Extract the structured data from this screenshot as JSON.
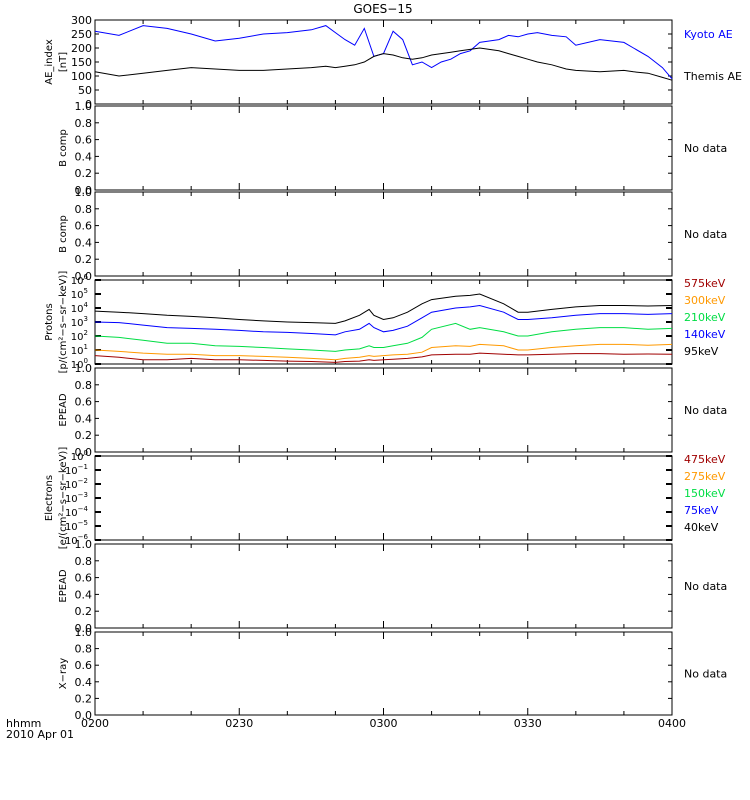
{
  "title": "GOES−15",
  "x_axis": {
    "label": "hhmm",
    "date": "2010 Apr 01",
    "ticks": [
      "0200",
      "0230",
      "0300",
      "0330",
      "0400"
    ]
  },
  "no_data_text": "No data",
  "chart_data": [
    {
      "id": "ae",
      "type": "line",
      "ylabel": "AE_index",
      "yunit": "[nT]",
      "ylim": [
        0,
        300
      ],
      "yticks": [
        "0",
        "50",
        "100",
        "150",
        "200",
        "250",
        "300"
      ],
      "x_minutes": [
        0,
        5,
        10,
        15,
        20,
        25,
        30,
        35,
        40,
        45,
        48,
        50,
        52,
        54,
        56,
        58,
        60,
        62,
        64,
        66,
        68,
        70,
        72,
        74,
        76,
        78,
        80,
        82,
        84,
        86,
        88,
        90,
        92,
        95,
        98,
        100,
        105,
        110,
        112,
        115,
        118,
        120
      ],
      "series": [
        {
          "name": "Kyoto AE",
          "color": "#0000ff",
          "values": [
            260,
            245,
            280,
            270,
            250,
            225,
            235,
            250,
            255,
            265,
            280,
            255,
            230,
            210,
            270,
            170,
            180,
            260,
            230,
            140,
            150,
            130,
            150,
            160,
            180,
            190,
            220,
            225,
            230,
            245,
            240,
            250,
            255,
            245,
            240,
            210,
            230,
            220,
            200,
            170,
            130,
            90
          ]
        },
        {
          "name": "Themis AE",
          "color": "#000000",
          "values": [
            115,
            100,
            110,
            120,
            130,
            125,
            120,
            120,
            125,
            130,
            135,
            130,
            135,
            140,
            150,
            170,
            180,
            175,
            165,
            160,
            165,
            175,
            180,
            185,
            190,
            195,
            200,
            195,
            190,
            180,
            170,
            160,
            150,
            140,
            125,
            120,
            115,
            120,
            115,
            110,
            95,
            85
          ]
        }
      ]
    },
    {
      "id": "b1",
      "type": "line",
      "ylabel": "B comp",
      "ylim": [
        0,
        1
      ],
      "yticks": [
        "0.0",
        "0.2",
        "0.4",
        "0.6",
        "0.8",
        "1.0"
      ],
      "status": "No data"
    },
    {
      "id": "b2",
      "type": "line",
      "ylabel": "B comp",
      "ylim": [
        0,
        1
      ],
      "yticks": [
        "0.0",
        "0.2",
        "0.4",
        "0.6",
        "0.8",
        "1.0"
      ],
      "status": "No data"
    },
    {
      "id": "protons",
      "type": "line",
      "yscale": "log",
      "ylabel": "Protons",
      "yunit": "[p/(cm²−s−sr−keV)]",
      "ylim": [
        1,
        1000000
      ],
      "ytick_exponents": [
        0,
        1,
        2,
        3,
        4,
        5,
        6
      ],
      "x_minutes": [
        0,
        5,
        10,
        15,
        20,
        25,
        30,
        35,
        40,
        45,
        50,
        52,
        55,
        57,
        58,
        60,
        62,
        65,
        68,
        70,
        75,
        78,
        80,
        85,
        88,
        90,
        95,
        100,
        105,
        110,
        115,
        120
      ],
      "series": [
        {
          "name": "575keV",
          "color": "#a00000",
          "values": [
            4,
            3,
            2,
            2,
            2.5,
            2,
            2,
            1.8,
            1.6,
            1.5,
            1.3,
            1.5,
            1.6,
            2,
            1.8,
            2,
            2.2,
            2.5,
            3.2,
            4.5,
            5,
            5,
            6,
            5,
            4.5,
            4.5,
            5,
            5.5,
            5.5,
            5,
            5.2,
            5
          ]
        },
        {
          "name": "300keV",
          "color": "#ff9900",
          "values": [
            10,
            8,
            6,
            5,
            5,
            4,
            4,
            3.5,
            3,
            2.5,
            2,
            2.5,
            3,
            4,
            3.5,
            4,
            4.5,
            5,
            7,
            15,
            20,
            18,
            25,
            20,
            10,
            10,
            15,
            20,
            25,
            25,
            22,
            25
          ]
        },
        {
          "name": "210keV",
          "color": "#00dd44",
          "values": [
            100,
            80,
            50,
            30,
            30,
            20,
            18,
            15,
            12,
            10,
            8,
            10,
            12,
            20,
            15,
            15,
            20,
            30,
            80,
            300,
            800,
            300,
            400,
            200,
            100,
            100,
            200,
            300,
            400,
            400,
            300,
            350
          ]
        },
        {
          "name": "140keV",
          "color": "#0000ff",
          "values": [
            1000,
            900,
            600,
            400,
            350,
            300,
            250,
            200,
            180,
            150,
            120,
            200,
            300,
            800,
            400,
            200,
            250,
            500,
            2000,
            5000,
            10000,
            12000,
            15000,
            5000,
            1500,
            1500,
            2000,
            3000,
            4000,
            4000,
            3500,
            4000
          ]
        },
        {
          "name": "95keV",
          "color": "#000000",
          "values": [
            6000,
            5000,
            4000,
            3000,
            2500,
            2000,
            1500,
            1200,
            1000,
            900,
            800,
            1200,
            3000,
            8000,
            3000,
            1500,
            2000,
            5000,
            20000,
            40000,
            70000,
            80000,
            100000,
            20000,
            5000,
            5000,
            8000,
            12000,
            15000,
            15000,
            14000,
            15000
          ]
        }
      ]
    },
    {
      "id": "epead1",
      "type": "line",
      "ylabel": "EPEAD",
      "ylim": [
        0,
        1
      ],
      "yticks": [
        "0.0",
        "0.2",
        "0.4",
        "0.6",
        "0.8",
        "1.0"
      ],
      "status": "No data"
    },
    {
      "id": "electrons",
      "type": "line",
      "yscale": "log",
      "ylabel": "Electrons",
      "yunit": "[e/(cm²−s−sr−keV)]",
      "ylim": [
        1e-06,
        1
      ],
      "ytick_exponents": [
        0,
        -1,
        -2,
        -3,
        -4,
        -5,
        -6
      ],
      "series": [
        {
          "name": "475keV",
          "color": "#a00000"
        },
        {
          "name": "275keV",
          "color": "#ff9900"
        },
        {
          "name": "150keV",
          "color": "#00dd44"
        },
        {
          "name": "75keV",
          "color": "#0000ff"
        },
        {
          "name": "40keV",
          "color": "#000000"
        }
      ]
    },
    {
      "id": "epead2",
      "type": "line",
      "ylabel": "EPEAD",
      "ylim": [
        0,
        1
      ],
      "yticks": [
        "0.0",
        "0.2",
        "0.4",
        "0.6",
        "0.8",
        "1.0"
      ],
      "status": "No data"
    },
    {
      "id": "xray",
      "type": "line",
      "ylabel": "X−ray",
      "ylim": [
        0,
        1
      ],
      "yticks": [
        "0.0",
        "0.2",
        "0.4",
        "0.6",
        "0.8",
        "1.0"
      ],
      "status": "No data"
    }
  ]
}
